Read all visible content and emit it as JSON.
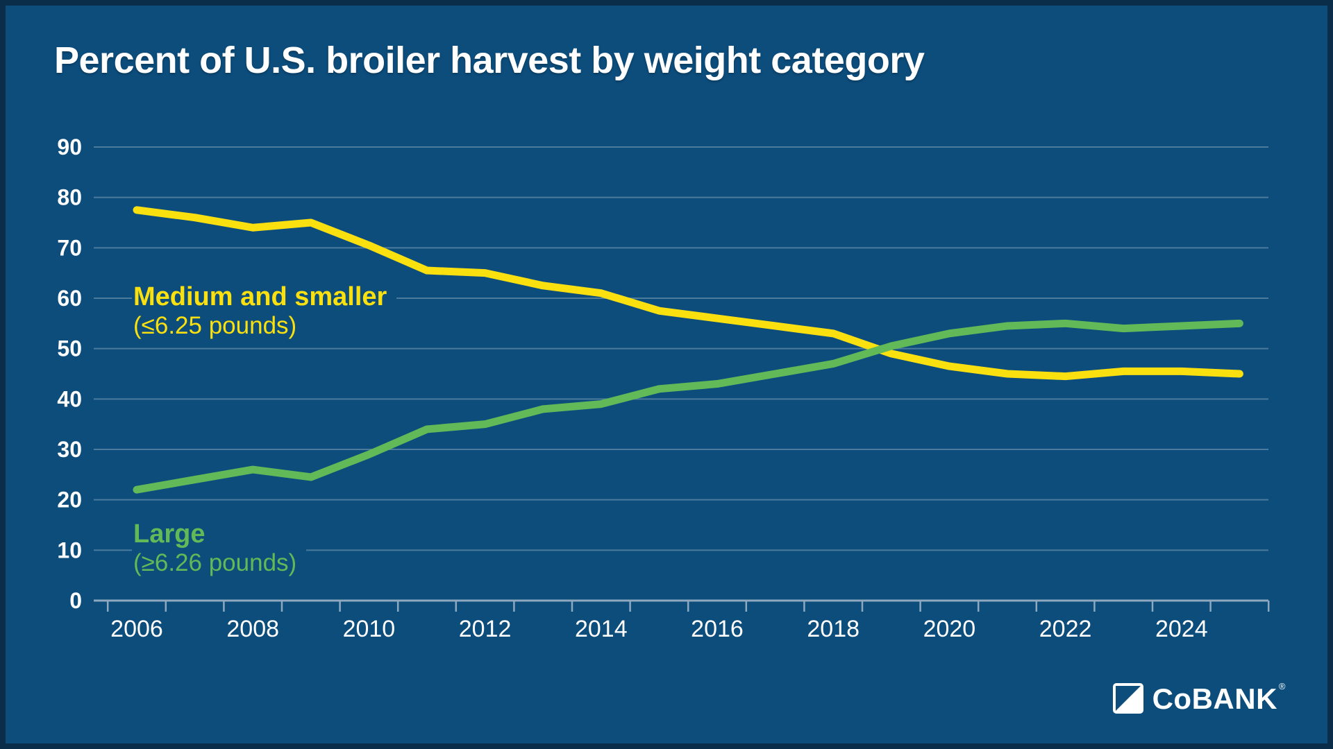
{
  "title": "Percent of U.S. broiler harvest by weight category",
  "labels": {
    "medium_line1": "Medium and smaller",
    "medium_line2": "(≤6.25 pounds)",
    "large_line1": "Large",
    "large_line2": "(≥6.26 pounds)"
  },
  "logo": {
    "text": "CoBANK",
    "reg_mark": "®"
  },
  "colors": {
    "background": "#0C4D7C",
    "frame": "#0A2E49",
    "medium_series": "#FBE010",
    "large_series": "#61BA57",
    "gridline": "#7195AE",
    "axis": "#8EA9BF",
    "text": "#FFFFFF"
  },
  "chart_data": {
    "type": "line",
    "title": "Percent of U.S. broiler harvest by weight category",
    "xlabel": "",
    "ylabel": "",
    "x": [
      2006,
      2007,
      2008,
      2009,
      2010,
      2011,
      2012,
      2013,
      2014,
      2015,
      2016,
      2017,
      2018,
      2019,
      2020,
      2021,
      2022,
      2023,
      2024,
      2025
    ],
    "series": [
      {
        "name": "Medium and smaller (≤6.25 pounds)",
        "color": "#FBE010",
        "values": [
          77.5,
          76,
          74,
          75,
          70.5,
          65.5,
          65,
          62.5,
          61,
          57.5,
          56,
          54.5,
          53,
          49,
          46.5,
          45,
          44.5,
          45.5,
          45.5,
          45
        ]
      },
      {
        "name": "Large (≥6.26 pounds)",
        "color": "#61BA57",
        "values": [
          22,
          24,
          26,
          24.5,
          29,
          34,
          35,
          38,
          39,
          42,
          43,
          45,
          47,
          50.5,
          53,
          54.5,
          55,
          54,
          54.5,
          55
        ]
      }
    ],
    "ylim": [
      0,
      90
    ],
    "ytick_values": [
      0,
      10,
      20,
      30,
      40,
      50,
      60,
      70,
      80,
      90
    ],
    "xtick_labels": [
      "2006",
      "2008",
      "2010",
      "2012",
      "2014",
      "2016",
      "2018",
      "2020",
      "2022",
      "2024"
    ],
    "grid": true,
    "legend_position": "inline-annotations"
  }
}
